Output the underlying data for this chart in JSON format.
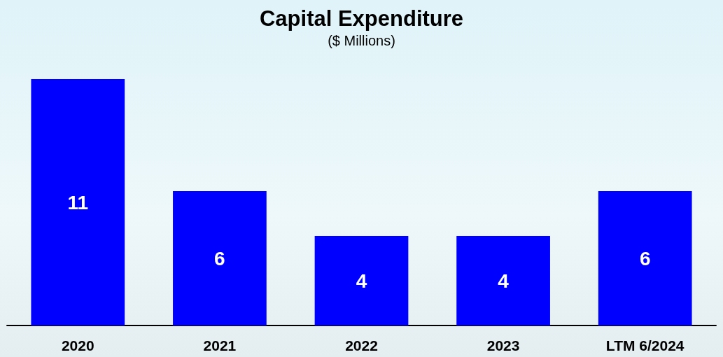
{
  "chart_data": {
    "type": "bar",
    "title": "Capital Expenditure",
    "subtitle": "($ Millions)",
    "categories": [
      "2020",
      "2021",
      "2022",
      "2023",
      "LTM 6/2024"
    ],
    "values": [
      11,
      6,
      4,
      4,
      6
    ],
    "color": "#0000ff",
    "data_labels": true
  }
}
